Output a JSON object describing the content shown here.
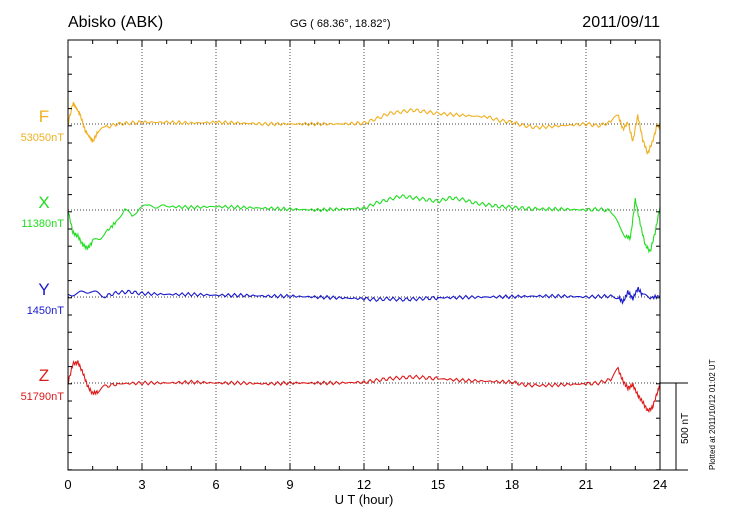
{
  "header": {
    "station": "Abisko (ABK)",
    "coords": "GG ( 68.36°,  18.82°)",
    "date": "2011/09/11"
  },
  "footer": {
    "plotted": "Plotted at 2011/10/12 01:02 UT",
    "scale_label": "500 nT"
  },
  "colors": {
    "F": "#f0b020",
    "X": "#22dd22",
    "Y": "#1a1acc",
    "Z": "#dd1a1a"
  },
  "chart_data": {
    "type": "line",
    "xlabel": "U T (hour)",
    "xlim": [
      0,
      24
    ],
    "xticks": [
      "0",
      "3",
      "6",
      "9",
      "12",
      "15",
      "18",
      "21",
      "24"
    ],
    "scale_nT": 500,
    "series": [
      {
        "name": "F",
        "baseline_label": "53050nT",
        "baseline_nT": 53050,
        "x": [
          0,
          0.2,
          0.35,
          0.5,
          0.7,
          0.85,
          1.0,
          1.2,
          1.5,
          2.0,
          2.5,
          3.0,
          4.0,
          5.0,
          6.0,
          7.0,
          8.0,
          9.0,
          10.0,
          11.0,
          12.0,
          12.5,
          13.0,
          13.5,
          14.0,
          14.5,
          15.0,
          16.0,
          17.0,
          17.5,
          18.0,
          18.5,
          19.0,
          20.0,
          21.0,
          21.5,
          22.0,
          22.3,
          22.5,
          22.7,
          22.9,
          23.1,
          23.3,
          23.5,
          23.7,
          23.9,
          24.0
        ],
        "y": [
          53050,
          53170,
          53140,
          53100,
          53010,
          52980,
          52950,
          53000,
          53030,
          53050,
          53055,
          53060,
          53060,
          53055,
          53060,
          53055,
          53050,
          53050,
          53050,
          53050,
          53055,
          53080,
          53110,
          53120,
          53130,
          53120,
          53110,
          53100,
          53090,
          53070,
          53060,
          53040,
          53030,
          53040,
          53050,
          53040,
          53060,
          53100,
          53020,
          53060,
          52950,
          53100,
          52960,
          52880,
          52950,
          53050,
          53020
        ]
      },
      {
        "name": "X",
        "baseline_label": "11380nT",
        "baseline_nT": 11380,
        "x": [
          0,
          0.2,
          0.4,
          0.6,
          0.8,
          1.0,
          1.3,
          1.6,
          2.0,
          2.3,
          2.6,
          2.9,
          3.2,
          4.0,
          5.0,
          6.0,
          7.0,
          8.0,
          9.0,
          10.0,
          11.0,
          12.0,
          12.5,
          13.0,
          13.5,
          14.0,
          14.5,
          15.0,
          15.5,
          16.0,
          16.5,
          17.0,
          17.5,
          18.0,
          18.5,
          19.0,
          20.0,
          21.0,
          21.5,
          22.0,
          22.3,
          22.6,
          22.8,
          23.0,
          23.2,
          23.4,
          23.6,
          23.8,
          24.0
        ],
        "y": [
          11380,
          11250,
          11230,
          11180,
          11160,
          11200,
          11220,
          11260,
          11320,
          11390,
          11340,
          11395,
          11400,
          11400,
          11395,
          11400,
          11395,
          11390,
          11385,
          11380,
          11385,
          11390,
          11420,
          11440,
          11460,
          11450,
          11440,
          11430,
          11450,
          11440,
          11420,
          11410,
          11400,
          11395,
          11390,
          11385,
          11385,
          11380,
          11385,
          11375,
          11300,
          11230,
          11220,
          11440,
          11300,
          11180,
          11140,
          11250,
          11400
        ]
      },
      {
        "name": "Y",
        "baseline_label": "1450nT",
        "baseline_nT": 1450,
        "x": [
          0,
          0.3,
          0.6,
          0.9,
          1.2,
          1.5,
          2.0,
          2.5,
          3.0,
          4.0,
          5.0,
          6.0,
          7.0,
          8.0,
          9.0,
          10.0,
          11.0,
          12.0,
          12.5,
          13.0,
          13.5,
          14.0,
          14.5,
          15.0,
          16.0,
          17.0,
          18.0,
          19.0,
          20.0,
          21.0,
          22.0,
          22.3,
          22.5,
          22.7,
          22.9,
          23.1,
          23.3,
          23.6,
          24.0
        ],
        "y": [
          1460,
          1470,
          1475,
          1485,
          1470,
          1455,
          1475,
          1480,
          1470,
          1465,
          1465,
          1460,
          1460,
          1455,
          1455,
          1450,
          1445,
          1440,
          1435,
          1440,
          1435,
          1438,
          1442,
          1445,
          1448,
          1450,
          1452,
          1455,
          1455,
          1450,
          1455,
          1450,
          1420,
          1480,
          1440,
          1500,
          1460,
          1445,
          1455
        ]
      },
      {
        "name": "Z",
        "baseline_label": "51790nT",
        "baseline_nT": 51790,
        "x": [
          0,
          0.2,
          0.4,
          0.6,
          0.8,
          1.0,
          1.2,
          1.5,
          2.0,
          3.0,
          4.0,
          5.0,
          6.0,
          7.0,
          8.0,
          9.0,
          10.0,
          11.0,
          12.0,
          12.5,
          13.0,
          13.5,
          14.0,
          14.5,
          15.0,
          16.0,
          17.0,
          18.0,
          18.5,
          19.0,
          20.0,
          21.0,
          21.5,
          22.0,
          22.3,
          22.5,
          22.7,
          22.9,
          23.1,
          23.3,
          23.5,
          23.7,
          23.9,
          24.0
        ],
        "y": [
          51790,
          51900,
          51910,
          51850,
          51770,
          51730,
          51740,
          51770,
          51785,
          51790,
          51790,
          51795,
          51790,
          51790,
          51785,
          51790,
          51790,
          51790,
          51795,
          51805,
          51815,
          51820,
          51825,
          51820,
          51815,
          51805,
          51800,
          51795,
          51780,
          51775,
          51780,
          51785,
          51790,
          51810,
          51870,
          51800,
          51760,
          51780,
          51720,
          51680,
          51630,
          51650,
          51740,
          51780
        ]
      }
    ]
  }
}
